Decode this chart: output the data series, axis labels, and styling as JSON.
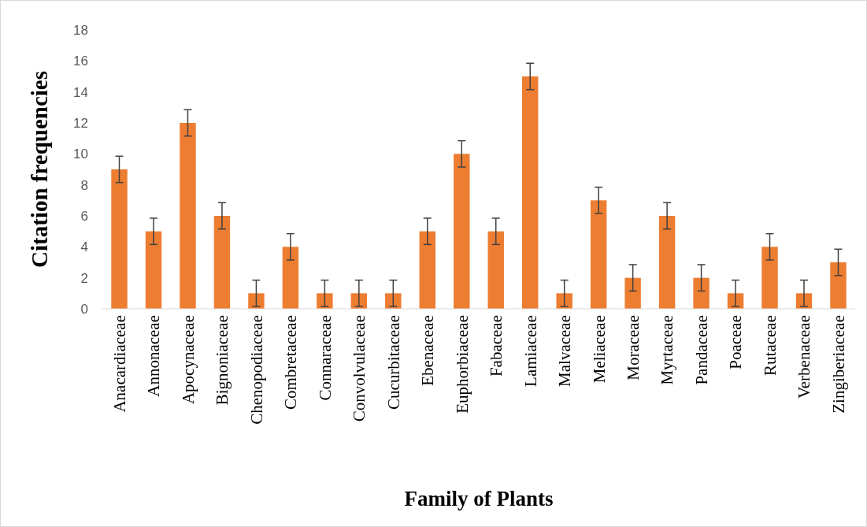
{
  "chart_data": {
    "type": "bar",
    "xlabel": "Family of Plants",
    "ylabel": "Citation frequencies",
    "categories": [
      "Anacardiaceae",
      "Annonaceae",
      "Apocynaceae",
      "Bignoniaceae",
      "Chenopodiaceae",
      "Combretaceae",
      "Connaraceae",
      "Convolvulaceae",
      "Cucurbitaceae",
      "Ebenaceae",
      "Euphorbiaceae",
      "Fabaceae",
      "Lamiaceae",
      "Malvaceae",
      "Meliaceae",
      "Moraceae",
      "Myrtaceae",
      "Pandaceae",
      "Poaceae",
      "Rutaceae",
      "Verbenaceae",
      "Zingiberiaceae"
    ],
    "values": [
      9,
      5,
      12,
      6,
      1,
      4,
      1,
      1,
      1,
      5,
      10,
      5,
      15,
      1,
      7,
      2,
      6,
      2,
      1,
      4,
      1,
      3
    ],
    "errors": [
      0.85,
      0.85,
      0.85,
      0.85,
      0.85,
      0.85,
      0.85,
      0.85,
      0.85,
      0.85,
      0.85,
      0.85,
      0.85,
      0.85,
      0.85,
      0.85,
      0.85,
      0.85,
      0.85,
      0.85,
      0.85,
      0.85
    ],
    "color": "#ed7d31",
    "ylim": [
      0,
      18
    ],
    "yticks": [
      0,
      2,
      4,
      6,
      8,
      10,
      12,
      14,
      16,
      18
    ],
    "grid": false
  }
}
